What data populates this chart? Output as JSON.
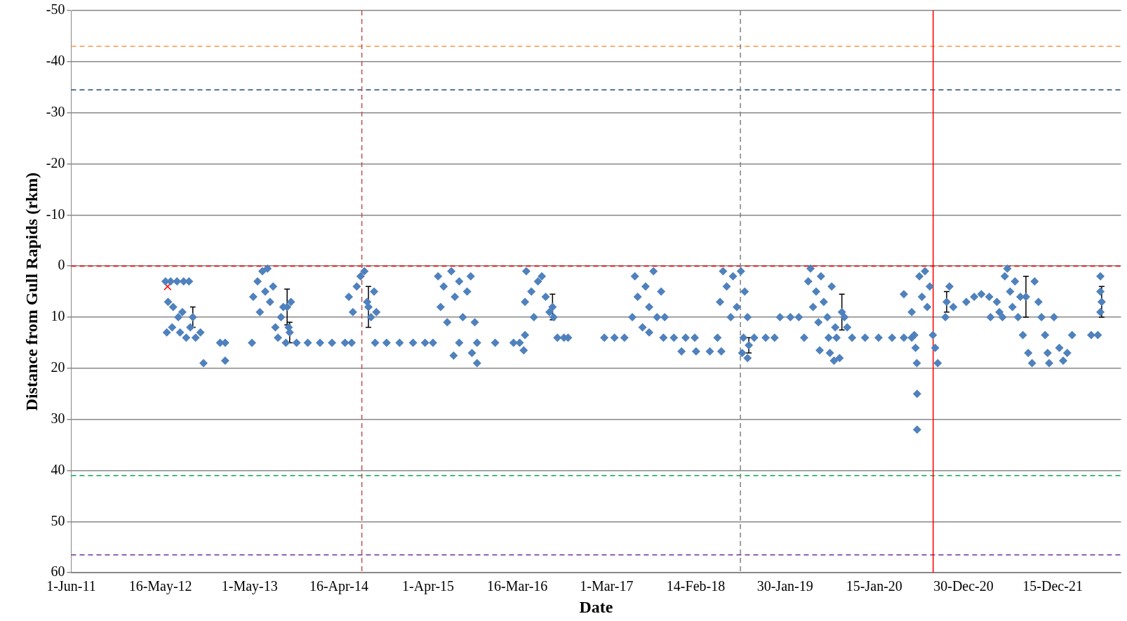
{
  "chart_data": {
    "type": "scatter",
    "xlabel": "Date",
    "ylabel": "Distance from Gull Rapids (rkm)",
    "xlim": [
      "2011-06-01",
      "2022-09-09"
    ],
    "xticks": [
      {
        "value": "2011-06-01",
        "label": "1-Jun-11"
      },
      {
        "value": "2012-05-16",
        "label": "16-May-12"
      },
      {
        "value": "2013-05-01",
        "label": "1-May-13"
      },
      {
        "value": "2014-04-16",
        "label": "16-Apr-14"
      },
      {
        "value": "2015-04-01",
        "label": "1-Apr-15"
      },
      {
        "value": "2016-03-16",
        "label": "16-Mar-16"
      },
      {
        "value": "2017-03-01",
        "label": "1-Mar-17"
      },
      {
        "value": "2018-02-14",
        "label": "14-Feb-18"
      },
      {
        "value": "2019-01-30",
        "label": "30-Jan-19"
      },
      {
        "value": "2020-01-15",
        "label": "15-Jan-20"
      },
      {
        "value": "2020-12-30",
        "label": "30-Dec-20"
      },
      {
        "value": "2021-12-15",
        "label": "15-Dec-21"
      }
    ],
    "ylim": [
      60,
      -50
    ],
    "yticks": [
      -50,
      -40,
      -30,
      -20,
      -10,
      0,
      10,
      20,
      30,
      40,
      50,
      60
    ],
    "grid": "y",
    "marker": "diamond",
    "series": [
      {
        "color": "#4f81bd",
        "x": [
          "2012-06-05",
          "2012-06-25",
          "2012-07-20",
          "2012-08-15",
          "2012-09-05",
          "2012-06-15",
          "2012-07-05",
          "2012-07-25",
          "2012-08-10",
          "2012-06-10",
          "2012-07-01",
          "2012-08-01",
          "2012-08-25",
          "2012-09-10",
          "2012-10-01",
          "2012-10-20",
          "2012-11-01",
          "2013-01-05",
          "2013-01-25",
          "2013-01-25",
          "2013-05-10",
          "2013-05-15",
          "2013-06-01",
          "2013-06-10",
          "2013-06-20",
          "2013-07-01",
          "2013-07-10",
          "2013-07-20",
          "2013-08-01",
          "2013-08-10",
          "2013-08-20",
          "2013-09-01",
          "2013-09-10",
          "2013-09-20",
          "2013-10-01",
          "2013-10-10",
          "2013-11-01",
          "2013-12-15",
          "2014-02-01",
          "2014-03-20",
          "2014-05-10",
          "2014-06-05",
          "2014-05-25",
          "2014-06-10",
          "2014-06-25",
          "2014-07-10",
          "2014-07-25",
          "2014-08-05",
          "2014-08-20",
          "2014-09-01",
          "2014-09-10",
          "2014-09-05",
          "2014-10-20",
          "2014-12-10",
          "2015-02-01",
          "2015-03-20",
          "2015-04-20",
          "2015-05-10",
          "2015-05-20",
          "2015-06-01",
          "2015-06-15",
          "2015-07-01",
          "2015-07-15",
          "2015-08-01",
          "2015-08-15",
          "2015-09-01",
          "2015-09-15",
          "2015-10-01",
          "2015-09-20",
          "2015-10-10",
          "2015-07-10",
          "2015-08-01",
          "2015-10-10",
          "2015-12-20",
          "2016-03-01",
          "2016-03-25",
          "2016-04-15",
          "2016-04-20",
          "2016-05-10",
          "2016-05-20",
          "2016-06-05",
          "2016-06-20",
          "2016-07-05",
          "2016-07-20",
          "2016-08-05",
          "2016-04-15",
          "2016-04-10",
          "2016-08-20",
          "2016-09-15",
          "2016-10-01",
          "2017-02-20",
          "2017-04-01",
          "2017-05-10",
          "2017-06-10",
          "2017-06-20",
          "2017-07-01",
          "2017-07-20",
          "2017-08-01",
          "2017-08-15",
          "2017-09-01",
          "2017-09-15",
          "2017-10-01",
          "2017-10-15",
          "2017-10-10",
          "2017-11-20",
          "2018-01-05",
          "2018-02-10",
          "2017-08-15",
          "2017-12-20",
          "2018-02-15",
          "2018-04-10",
          "2018-05-25",
          "2018-05-20",
          "2018-06-01",
          "2018-06-15",
          "2018-07-01",
          "2018-07-10",
          "2018-07-25",
          "2018-08-10",
          "2018-08-25",
          "2018-09-05",
          "2018-05-10",
          "2018-08-20",
          "2018-10-01",
          "2018-11-15",
          "2018-12-20",
          "2018-08-15",
          "2018-09-05",
          "2019-01-10",
          "2019-02-20",
          "2019-03-25",
          "2019-04-15",
          "2019-05-01",
          "2019-05-10",
          "2019-05-20",
          "2019-06-01",
          "2019-06-10",
          "2019-06-20",
          "2019-07-01",
          "2019-07-15",
          "2019-08-01",
          "2019-08-15",
          "2019-06-15",
          "2019-08-20",
          "2019-07-20",
          "2019-07-25",
          "2019-08-10",
          "2019-09-01",
          "2019-09-20",
          "2019-10-01",
          "2019-10-20",
          "2019-12-10",
          "2020-02-01",
          "2020-03-25",
          "2020-05-10",
          "2020-06-10",
          "2020-05-10",
          "2020-06-10",
          "2020-06-20",
          "2020-06-25",
          "2020-06-30",
          "2020-07-01",
          "2020-07-01",
          "2020-07-10",
          "2020-07-20",
          "2020-08-01",
          "2020-08-10",
          "2020-08-20",
          "2020-09-01",
          "2020-09-10",
          "2020-09-20",
          "2020-10-20",
          "2020-11-05",
          "2020-11-20",
          "2021-01-10",
          "2021-02-10",
          "2021-03-10",
          "2021-04-10",
          "2021-05-10",
          "2021-05-20",
          "2021-04-15",
          "2021-06-01",
          "2021-06-10",
          "2021-06-20",
          "2021-07-01",
          "2021-07-10",
          "2021-07-20",
          "2021-08-01",
          "2021-08-10",
          "2021-08-20",
          "2021-09-10",
          "2021-09-25",
          "2021-10-05",
          "2021-10-20",
          "2021-11-01",
          "2021-11-15",
          "2021-11-25",
          "2021-12-01",
          "2021-12-20",
          "2022-01-10",
          "2022-01-25",
          "2022-02-10",
          "2022-03-01",
          "2022-05-15",
          "2022-06-10",
          "2022-06-20",
          "2022-06-20",
          "2022-06-20"
        ],
        "values": [
          3,
          3,
          3,
          3,
          3,
          7,
          8,
          10,
          9,
          13,
          12,
          13,
          14,
          12,
          14,
          13,
          19,
          15,
          15,
          18.5,
          15,
          6,
          3,
          9,
          1,
          5,
          0.5,
          7,
          4,
          12,
          14,
          10,
          8,
          15,
          12,
          7,
          15,
          15,
          15,
          15,
          15,
          15,
          6,
          9,
          4,
          2,
          1,
          7,
          10,
          5,
          9,
          15,
          15,
          15,
          15,
          15,
          15,
          2,
          8,
          4,
          11,
          1,
          6,
          3,
          10,
          5,
          2,
          11,
          17,
          19,
          17.5,
          15,
          15,
          15,
          15,
          15,
          7,
          1,
          5,
          10,
          3,
          2,
          6,
          9,
          10,
          13.5,
          16.5,
          14,
          14,
          14,
          14,
          14,
          14,
          10,
          2,
          6,
          12,
          4,
          8,
          1,
          10,
          5,
          10,
          14,
          14,
          14,
          14,
          13,
          16.7,
          16.7,
          16.7,
          16.7,
          7,
          1,
          4,
          10,
          2,
          8,
          1,
          5,
          10,
          14,
          14,
          14,
          14,
          14,
          17,
          18,
          10,
          10,
          10,
          14,
          3,
          0.5,
          8,
          5,
          11,
          2,
          7,
          10,
          4,
          12,
          16.5,
          14,
          14,
          17,
          18.5,
          18,
          10,
          12,
          14,
          14,
          14,
          14,
          14,
          14,
          5.5,
          9,
          13.5,
          16,
          19,
          25,
          32,
          2,
          6,
          1,
          8,
          4,
          13.5,
          16,
          19,
          10,
          4,
          8,
          7,
          6,
          5.5,
          6,
          7,
          9,
          10,
          10,
          2,
          0.5,
          5,
          8,
          3,
          10,
          6,
          13.5,
          17,
          19,
          3,
          7,
          10,
          13.5,
          17,
          19,
          10,
          16,
          18.5,
          17,
          13.5,
          13.5,
          13.5,
          2,
          5,
          9
        ]
      },
      {
        "color": "#4f81bd",
        "x": [
          "2012-09-20",
          "2013-09-25",
          "2013-10-05",
          "2014-08-10",
          "2016-08-01",
          "2018-09-10",
          "2019-09-10",
          "2020-10-25",
          "2021-09-01",
          "2022-06-25"
        ],
        "values": [
          10,
          8,
          13,
          8,
          8,
          15.5,
          9,
          7,
          6,
          7
        ],
        "errors": [
          2,
          3.5,
          2,
          4,
          2.5,
          1.5,
          3.5,
          2,
          4,
          3
        ]
      },
      {
        "color": "#ff0000",
        "marker": "cross",
        "x": [
          "2012-06-13"
        ],
        "values": [
          4
        ]
      }
    ],
    "ref_lines": [
      {
        "axis": "y",
        "value": -43,
        "color": "#f79646",
        "line_style": "dashed"
      },
      {
        "axis": "y",
        "value": -34.5,
        "color": "#1f497d",
        "line_style": "dashed"
      },
      {
        "axis": "y",
        "value": 0,
        "color": "#ff0000",
        "line_style": "dashed"
      },
      {
        "axis": "y",
        "value": 41,
        "color": "#00b050",
        "line_style": "dashed"
      },
      {
        "axis": "y",
        "value": 56.5,
        "color": "#7030a0",
        "line_style": "dashed"
      },
      {
        "axis": "x",
        "value": "2014-07-15",
        "color": "#c0504d",
        "line_style": "dashed"
      },
      {
        "axis": "x",
        "value": "2018-08-08",
        "color": "#808080",
        "line_style": "dashed"
      },
      {
        "axis": "x",
        "value": "2020-09-02",
        "color": "#ff0000",
        "line_style": "solid"
      }
    ]
  }
}
